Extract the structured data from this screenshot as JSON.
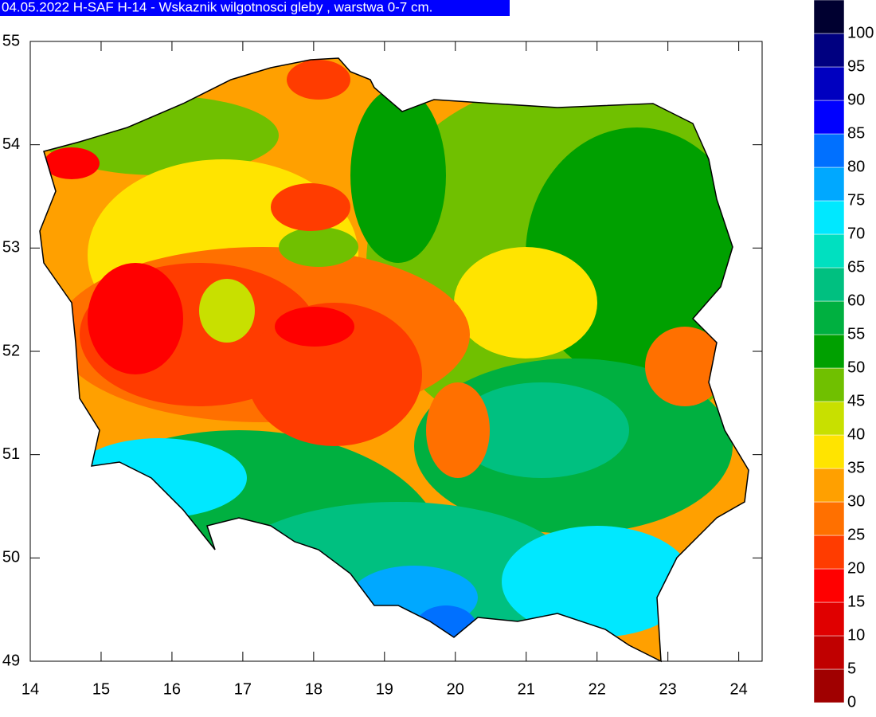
{
  "title": "04.05.2022 H-SAF H-14 - Wskaznik wilgotnosci gleby , warstwa 0-7 cm.",
  "map": {
    "xlim": [
      14,
      24.33
    ],
    "ylim": [
      49,
      55
    ],
    "xticks": [
      14,
      15,
      16,
      17,
      18,
      19,
      20,
      21,
      22,
      23,
      24
    ],
    "yticks": [
      49,
      50,
      51,
      52,
      53,
      54,
      55
    ],
    "colorbar": {
      "levels": [
        0,
        5,
        10,
        15,
        20,
        25,
        30,
        35,
        40,
        45,
        50,
        55,
        60,
        65,
        70,
        75,
        80,
        85,
        90,
        95,
        100
      ],
      "colors": [
        "#a00000",
        "#c00000",
        "#e00000",
        "#ff0000",
        "#ff3c00",
        "#ff7000",
        "#ffa000",
        "#ffe400",
        "#c8e000",
        "#70c000",
        "#00a000",
        "#00b040",
        "#00c080",
        "#00e0c0",
        "#00e8ff",
        "#00a8ff",
        "#0070ff",
        "#0000ff",
        "#0000c0",
        "#000080",
        "#000030"
      ]
    }
  }
}
